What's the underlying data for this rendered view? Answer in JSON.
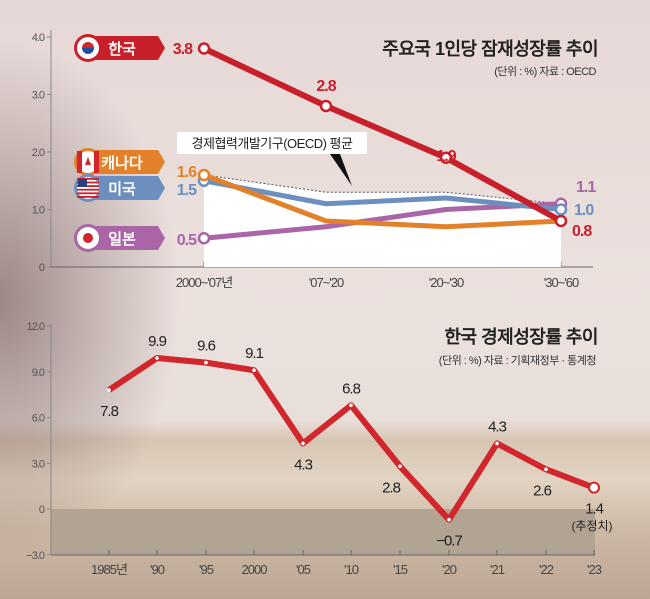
{
  "chart_data": [
    {
      "type": "line",
      "title": "주요국 1인당 잠재성장률 추이",
      "subtitle": "(단위 : %)  자료 : OECD",
      "categories": [
        "2000~'07년",
        "'07~'20",
        "'20~'30",
        "'30~'60"
      ],
      "yticks": [
        "0",
        "1.0",
        "2.0",
        "3.0",
        "4.0"
      ],
      "ylim": [
        0,
        4
      ],
      "series": [
        {
          "name": "한국",
          "color": "#c8202a",
          "values": [
            3.8,
            2.8,
            1.9,
            0.8
          ],
          "flag": "korea-flag"
        },
        {
          "name": "캐나다",
          "color": "#e2812a",
          "values": [
            1.6,
            0.8,
            0.7,
            0.8
          ],
          "flag": "canada-flag"
        },
        {
          "name": "미국",
          "color": "#6d8fc0",
          "values": [
            1.5,
            1.1,
            1.2,
            1.0
          ],
          "flag": "usa-flag"
        },
        {
          "name": "일본",
          "color": "#a965a6",
          "values": [
            0.5,
            0.7,
            1.0,
            1.1
          ],
          "flag": "japan-flag"
        }
      ],
      "oecd_average": {
        "label": "경제협력개발기구(OECD) 평균",
        "values": [
          1.6,
          1.3,
          1.3,
          1.1
        ]
      },
      "data_labels": {
        "한국": [
          "3.8",
          "2.8",
          "1.9",
          "0.8"
        ],
        "캐나다_start": "1.6",
        "미국_start": "1.5",
        "일본_start": "0.5",
        "일본_end": "1.1",
        "미국_end": "1.0"
      }
    },
    {
      "type": "line",
      "title": "한국 경제성장률 추이",
      "subtitle": "(단위 : %)  자료 : 기획재정부 · 통계청",
      "categories": [
        "1985년",
        "'90",
        "'95",
        "2000",
        "'05",
        "'10",
        "'15",
        "'20",
        "'21",
        "'22",
        "'23"
      ],
      "values": [
        7.8,
        9.9,
        9.6,
        9.1,
        4.3,
        6.8,
        2.8,
        -0.7,
        4.3,
        2.6,
        1.4
      ],
      "data_labels": [
        "7.8",
        "9.9",
        "9.6",
        "9.1",
        "4.3",
        "6.8",
        "2.8",
        "−0.7",
        "4.3",
        "2.6",
        "1.4"
      ],
      "note": "(추정치)",
      "yticks": [
        "−3.0",
        "0",
        "3.0",
        "6.0",
        "9.0",
        "12.0"
      ],
      "ylim": [
        -3,
        12
      ],
      "color": "#d0262c"
    }
  ]
}
